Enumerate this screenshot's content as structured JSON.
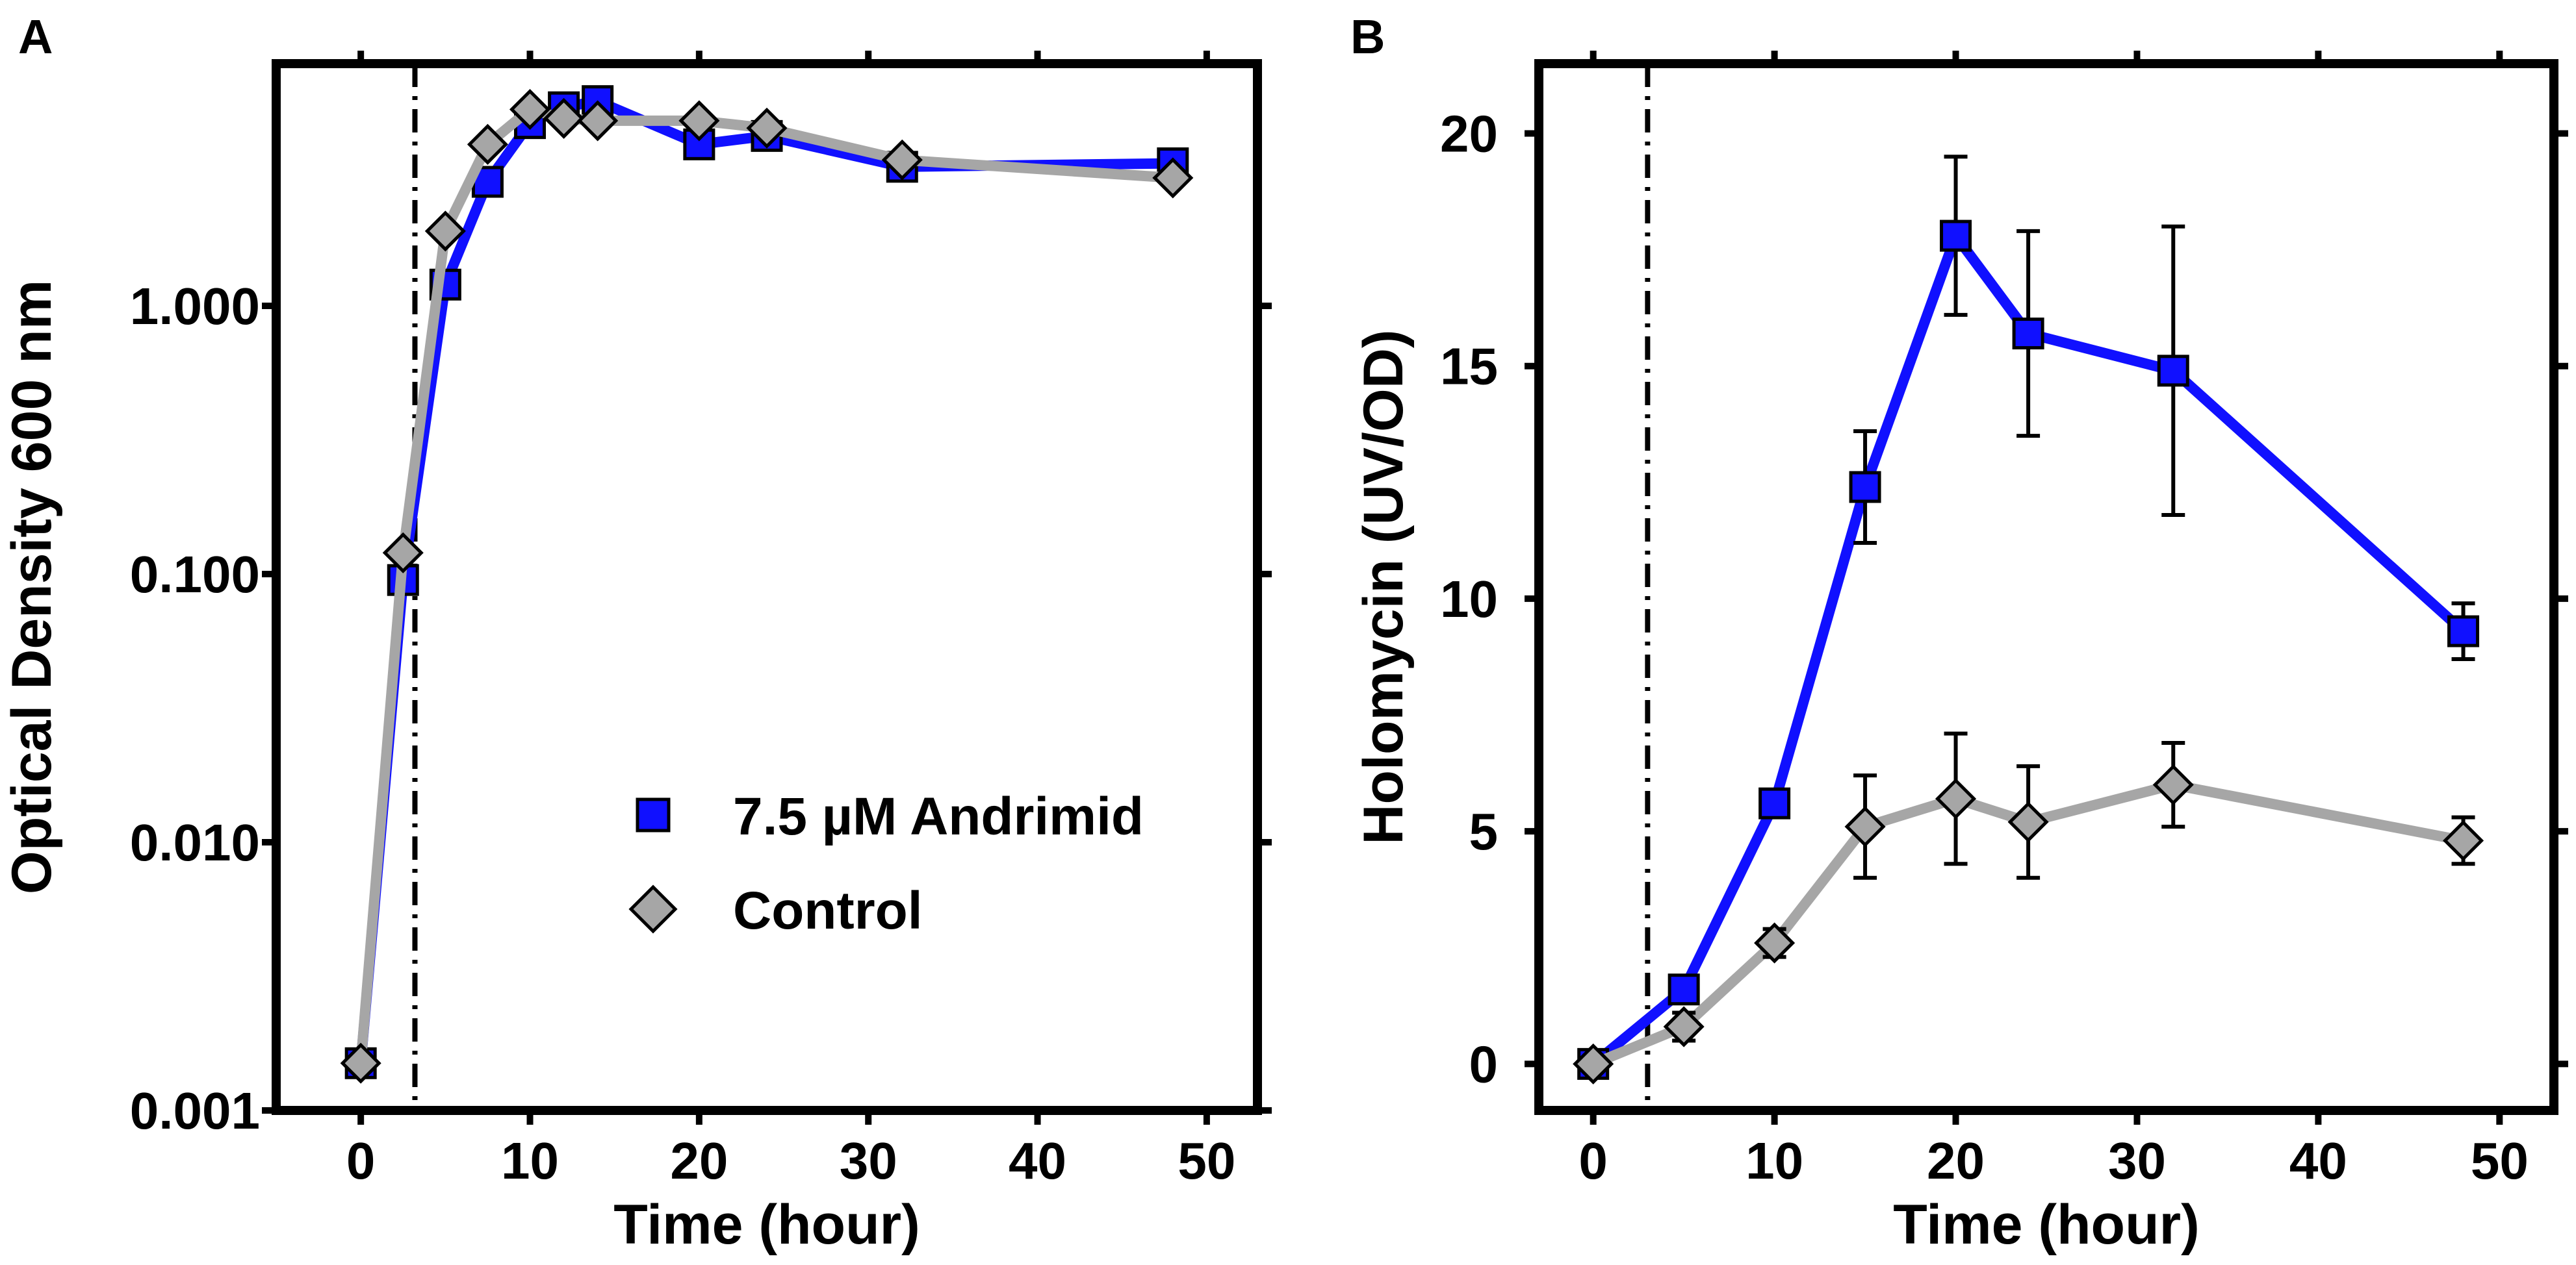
{
  "chart_data": [
    {
      "panel": "A",
      "type": "line",
      "title": "",
      "xlabel": "Time (hour)",
      "ylabel": "Optical Density 600 nm",
      "yscale": "log",
      "xlim": [
        -5,
        53
      ],
      "ylim": [
        0.001,
        8
      ],
      "xticks": [
        0,
        10,
        20,
        30,
        40,
        50
      ],
      "yticks": [
        0.001,
        0.01,
        0.1,
        1
      ],
      "ytick_labels": [
        "0.001",
        "0.010",
        "0.100",
        "1.000"
      ],
      "vline_x": 3.2,
      "legend_position": "lower-right",
      "series": [
        {
          "name": "7.5 µM Andrimid",
          "color": "#1010ff",
          "marker": "square",
          "x": [
            0,
            2.5,
            5,
            7.5,
            10,
            12,
            14,
            20,
            24,
            32,
            48
          ],
          "y": [
            0.0015,
            0.095,
            1.2,
            2.9,
            4.8,
            5.5,
            5.8,
            4.0,
            4.3,
            3.3,
            3.4
          ]
        },
        {
          "name": "Control",
          "color": "#a6a6a6",
          "marker": "diamond",
          "x": [
            0,
            2.5,
            5,
            7.5,
            10,
            12,
            14,
            20,
            24,
            32,
            48
          ],
          "y": [
            0.0015,
            0.12,
            1.9,
            4.0,
            5.4,
            5.0,
            4.9,
            4.9,
            4.6,
            3.5,
            3.0
          ]
        }
      ]
    },
    {
      "panel": "B",
      "type": "line",
      "title": "",
      "xlabel": "Time (hour)",
      "ylabel": "Holomycin (UV/OD)",
      "yscale": "linear",
      "xlim": [
        -3,
        53
      ],
      "ylim": [
        -1,
        21.5
      ],
      "xticks": [
        0,
        10,
        20,
        30,
        40,
        50
      ],
      "yticks": [
        0,
        5,
        10,
        15,
        20
      ],
      "ytick_labels": [
        "0",
        "5",
        "10",
        "15",
        "20"
      ],
      "vline_x": 3,
      "series": [
        {
          "name": "7.5 µM Andrimid",
          "color": "#1010ff",
          "marker": "square",
          "x": [
            0,
            5,
            10,
            15,
            20,
            24,
            32,
            48
          ],
          "y": [
            0,
            1.6,
            5.6,
            12.4,
            17.8,
            15.7,
            14.9,
            9.3
          ],
          "err": [
            0.1,
            0.2,
            0.2,
            1.2,
            1.7,
            2.2,
            3.1,
            0.6
          ]
        },
        {
          "name": "Control",
          "color": "#a6a6a6",
          "marker": "diamond",
          "x": [
            0,
            5,
            10,
            15,
            20,
            24,
            32,
            48
          ],
          "y": [
            0,
            0.8,
            2.6,
            5.1,
            5.7,
            5.2,
            6.0,
            4.8
          ],
          "err": [
            0.1,
            0.3,
            0.3,
            1.1,
            1.4,
            1.2,
            0.9,
            0.5
          ]
        }
      ]
    }
  ]
}
